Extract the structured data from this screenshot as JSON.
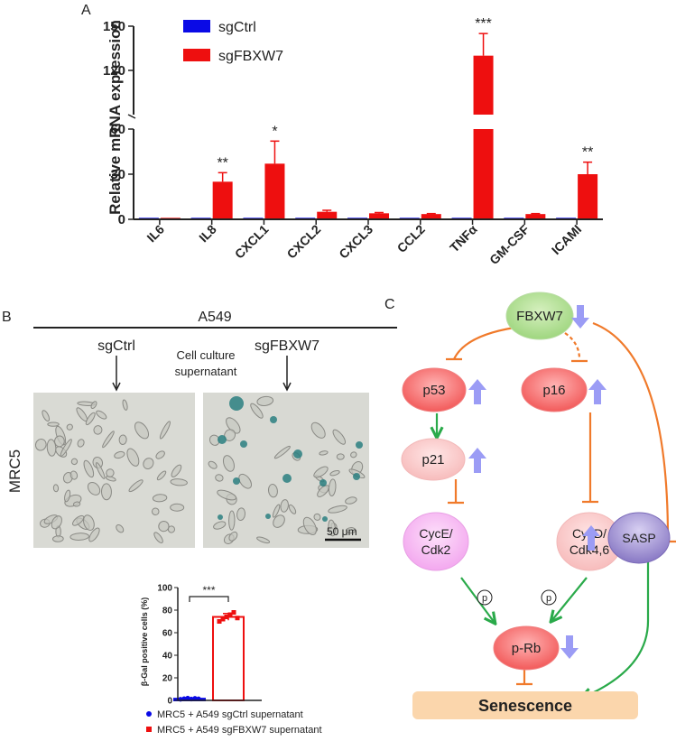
{
  "panels": {
    "a": "A",
    "b": "B",
    "c": "C"
  },
  "panel_a": {
    "ylabel": "Relative mRNA expression",
    "legend": [
      "sgCtrl",
      "sgFBXW7"
    ],
    "yticks_lower": [
      "0",
      "30",
      "60"
    ],
    "yticks_upper": [
      "120",
      "150"
    ]
  },
  "panel_b": {
    "cell_line": "A549",
    "sgctrl_label": "sgCtrl",
    "sgfbxw7_label": "sgFBXW7",
    "supernatant_label_line1": "Cell culture",
    "supernatant_label_line2": "supernatant",
    "row_label": "MRC5",
    "scale_bar": "50 μm",
    "inset_ylabel": "β-Gal positive cells (%)",
    "inset_yticks": [
      "0",
      "20",
      "40",
      "60",
      "80",
      "100"
    ],
    "inset_significance": "***",
    "inset_legend": [
      "MRC5 + A549 sgCtrl supernatant",
      "MRC5 + A549 sgFBXW7 supernatant"
    ]
  },
  "panel_c": {
    "nodes": {
      "fbxw7": "FBXW7",
      "p53": "p53",
      "p16": "p16",
      "p21": "p21",
      "cyce_line1": "CycE/",
      "cyce_line2": "Cdk2",
      "cycd_line1": "CycD/",
      "cycd_line2": "Cdk4,6",
      "prb": "p-Rb",
      "sasp": "SASP",
      "senescence": "Senescence"
    },
    "phospho_label": "p"
  },
  "colors": {
    "sgctrl": "#0a0ae6",
    "sgfbxw7": "#ee0f0f",
    "inhibit": "#f07a2b",
    "activate": "#2aaa4a",
    "updown_arrow": "#9b9cf5"
  },
  "chart_data": [
    {
      "type": "bar",
      "title": "",
      "xlabel": "",
      "ylabel": "Relative mRNA expression",
      "categories": [
        "IL6",
        "IL8",
        "CXCL1",
        "CXCL2",
        "CXCL3",
        "CCL2",
        "TNFα",
        "GM-CSF",
        "ICAMI"
      ],
      "series": [
        {
          "name": "sgCtrl",
          "values": [
            1,
            1,
            1,
            1,
            1,
            1,
            1,
            1,
            1
          ]
        },
        {
          "name": "sgFBXW7",
          "values": [
            1,
            25,
            37,
            5,
            4,
            3.5,
            130,
            3.5,
            30
          ],
          "error": [
            0,
            6,
            15,
            1,
            0.5,
            0.3,
            15,
            0.3,
            8
          ]
        }
      ],
      "significance": [
        "",
        "**",
        "*",
        "",
        "",
        "",
        "***",
        "",
        "**"
      ],
      "ylim": [
        0,
        150
      ],
      "y_axis_break": [
        60,
        90
      ],
      "legend": "top-left"
    },
    {
      "type": "bar",
      "title": "",
      "ylabel": "β-Gal positive cells (%)",
      "categories": [
        "MRC5 + A549 sgCtrl supernatant",
        "MRC5 + A549 sgFBXW7 supernatant"
      ],
      "values": [
        1.5,
        74
      ],
      "error": [
        0.5,
        3
      ],
      "points": [
        [
          1,
          1.5,
          2,
          1.2,
          1.8,
          1.4
        ],
        [
          70,
          72,
          74,
          76,
          78,
          73
        ]
      ],
      "ylim": [
        0,
        100
      ],
      "significance": "***",
      "legend": "bottom"
    }
  ]
}
